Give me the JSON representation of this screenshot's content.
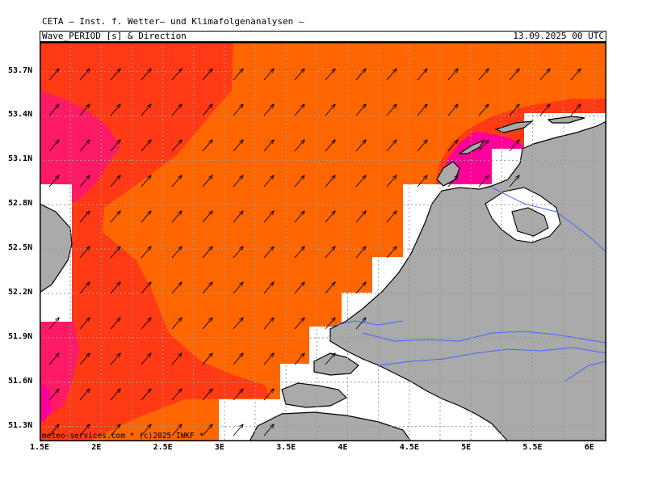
{
  "header": {
    "title": "CETA — Inst. f. Wetter— und Klimafolgenanalysen —",
    "field": "Wave_PERIOD [s] & Direction",
    "valid_time": "13.09.2025 00 UTC"
  },
  "map": {
    "lon_labels": [
      "1.5E",
      "2E",
      "2.5E",
      "3E",
      "3.5E",
      "4E",
      "4.5E",
      "5E",
      "5.5E",
      "6E"
    ],
    "lat_labels": [
      "53.7N",
      "53.4N",
      "53.1N",
      "52.8N",
      "52.5N",
      "52.2N",
      "51.9N",
      "51.6N",
      "51.3N"
    ],
    "lon_range": [
      1.5,
      6.1
    ],
    "lat_range": [
      51.2,
      53.9
    ],
    "grid": "dotted",
    "credit": "meteo-services.com * (c)2025 IWKF *",
    "arrow_direction": "toward northeast",
    "colors": {
      "land": "#aaaaaa",
      "period_high": "#ff6600",
      "period_mid": "#ff3a14",
      "period_low": "#ff1a66",
      "period_lowest": "#ff0099",
      "rivers": "#4466ff",
      "nodata": "#ffffff"
    }
  }
}
